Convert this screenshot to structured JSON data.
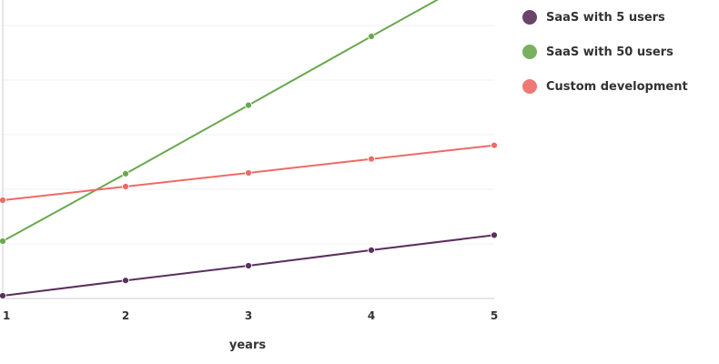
{
  "chart_data": {
    "type": "line",
    "x": [
      1,
      2,
      3,
      4,
      5
    ],
    "xlabel": "years",
    "ylabel": "",
    "ylim": [
      0,
      1000
    ],
    "grid": true,
    "legend_position": "right",
    "series": [
      {
        "name": "SaaS with 5 users",
        "color": "#5b2f5e",
        "values": [
          10,
          66,
          120,
          177,
          232
        ]
      },
      {
        "name": "SaaS with 50 users",
        "color": "#6aa84f",
        "values": [
          210,
          457,
          708,
          960,
          1210
        ]
      },
      {
        "name": "Custom development",
        "color": "#ef6a66",
        "values": [
          360,
          410,
          460,
          511,
          561
        ]
      }
    ]
  }
}
